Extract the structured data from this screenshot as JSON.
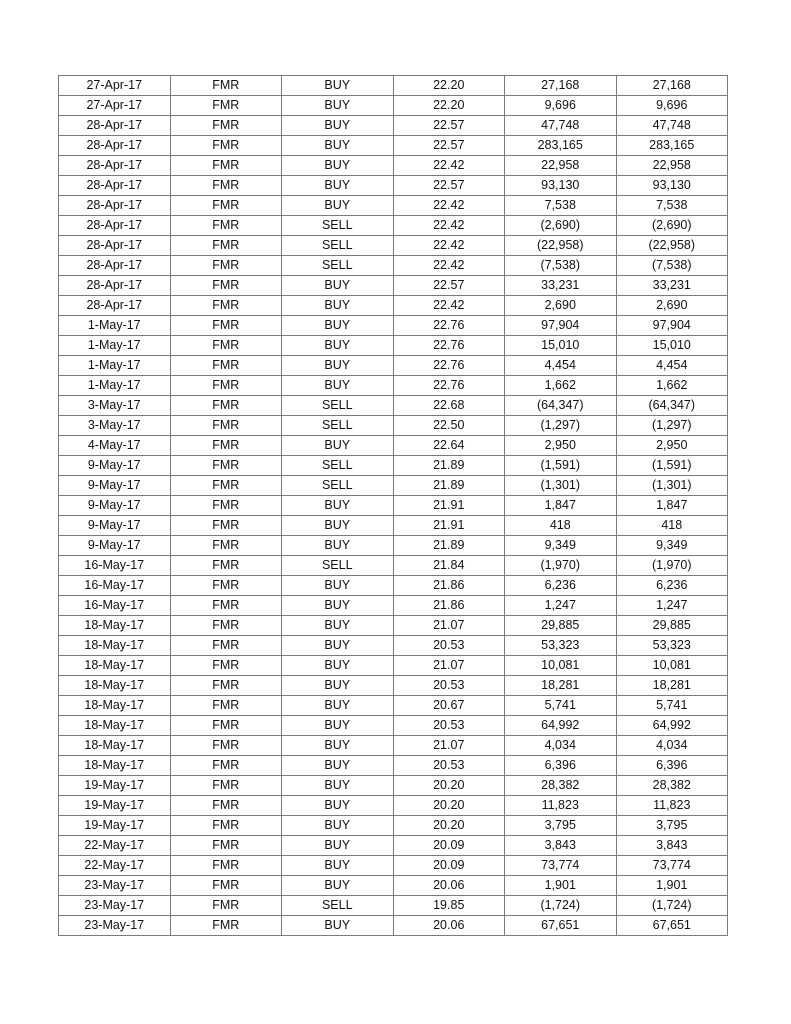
{
  "table": {
    "rows": [
      [
        "27-Apr-17",
        "FMR",
        "BUY",
        "22.20",
        "27,168",
        "27,168"
      ],
      [
        "27-Apr-17",
        "FMR",
        "BUY",
        "22.20",
        "9,696",
        "9,696"
      ],
      [
        "28-Apr-17",
        "FMR",
        "BUY",
        "22.57",
        "47,748",
        "47,748"
      ],
      [
        "28-Apr-17",
        "FMR",
        "BUY",
        "22.57",
        "283,165",
        "283,165"
      ],
      [
        "28-Apr-17",
        "FMR",
        "BUY",
        "22.42",
        "22,958",
        "22,958"
      ],
      [
        "28-Apr-17",
        "FMR",
        "BUY",
        "22.57",
        "93,130",
        "93,130"
      ],
      [
        "28-Apr-17",
        "FMR",
        "BUY",
        "22.42",
        "7,538",
        "7,538"
      ],
      [
        "28-Apr-17",
        "FMR",
        "SELL",
        "22.42",
        "(2,690)",
        "(2,690)"
      ],
      [
        "28-Apr-17",
        "FMR",
        "SELL",
        "22.42",
        "(22,958)",
        "(22,958)"
      ],
      [
        "28-Apr-17",
        "FMR",
        "SELL",
        "22.42",
        "(7,538)",
        "(7,538)"
      ],
      [
        "28-Apr-17",
        "FMR",
        "BUY",
        "22.57",
        "33,231",
        "33,231"
      ],
      [
        "28-Apr-17",
        "FMR",
        "BUY",
        "22.42",
        "2,690",
        "2,690"
      ],
      [
        "1-May-17",
        "FMR",
        "BUY",
        "22.76",
        "97,904",
        "97,904"
      ],
      [
        "1-May-17",
        "FMR",
        "BUY",
        "22.76",
        "15,010",
        "15,010"
      ],
      [
        "1-May-17",
        "FMR",
        "BUY",
        "22.76",
        "4,454",
        "4,454"
      ],
      [
        "1-May-17",
        "FMR",
        "BUY",
        "22.76",
        "1,662",
        "1,662"
      ],
      [
        "3-May-17",
        "FMR",
        "SELL",
        "22.68",
        "(64,347)",
        "(64,347)"
      ],
      [
        "3-May-17",
        "FMR",
        "SELL",
        "22.50",
        "(1,297)",
        "(1,297)"
      ],
      [
        "4-May-17",
        "FMR",
        "BUY",
        "22.64",
        "2,950",
        "2,950"
      ],
      [
        "9-May-17",
        "FMR",
        "SELL",
        "21.89",
        "(1,591)",
        "(1,591)"
      ],
      [
        "9-May-17",
        "FMR",
        "SELL",
        "21.89",
        "(1,301)",
        "(1,301)"
      ],
      [
        "9-May-17",
        "FMR",
        "BUY",
        "21.91",
        "1,847",
        "1,847"
      ],
      [
        "9-May-17",
        "FMR",
        "BUY",
        "21.91",
        "418",
        "418"
      ],
      [
        "9-May-17",
        "FMR",
        "BUY",
        "21.89",
        "9,349",
        "9,349"
      ],
      [
        "16-May-17",
        "FMR",
        "SELL",
        "21.84",
        "(1,970)",
        "(1,970)"
      ],
      [
        "16-May-17",
        "FMR",
        "BUY",
        "21.86",
        "6,236",
        "6,236"
      ],
      [
        "16-May-17",
        "FMR",
        "BUY",
        "21.86",
        "1,247",
        "1,247"
      ],
      [
        "18-May-17",
        "FMR",
        "BUY",
        "21.07",
        "29,885",
        "29,885"
      ],
      [
        "18-May-17",
        "FMR",
        "BUY",
        "20.53",
        "53,323",
        "53,323"
      ],
      [
        "18-May-17",
        "FMR",
        "BUY",
        "21.07",
        "10,081",
        "10,081"
      ],
      [
        "18-May-17",
        "FMR",
        "BUY",
        "20.53",
        "18,281",
        "18,281"
      ],
      [
        "18-May-17",
        "FMR",
        "BUY",
        "20.67",
        "5,741",
        "5,741"
      ],
      [
        "18-May-17",
        "FMR",
        "BUY",
        "20.53",
        "64,992",
        "64,992"
      ],
      [
        "18-May-17",
        "FMR",
        "BUY",
        "21.07",
        "4,034",
        "4,034"
      ],
      [
        "18-May-17",
        "FMR",
        "BUY",
        "20.53",
        "6,396",
        "6,396"
      ],
      [
        "19-May-17",
        "FMR",
        "BUY",
        "20.20",
        "28,382",
        "28,382"
      ],
      [
        "19-May-17",
        "FMR",
        "BUY",
        "20.20",
        "11,823",
        "11,823"
      ],
      [
        "19-May-17",
        "FMR",
        "BUY",
        "20.20",
        "3,795",
        "3,795"
      ],
      [
        "22-May-17",
        "FMR",
        "BUY",
        "20.09",
        "3,843",
        "3,843"
      ],
      [
        "22-May-17",
        "FMR",
        "BUY",
        "20.09",
        "73,774",
        "73,774"
      ],
      [
        "23-May-17",
        "FMR",
        "BUY",
        "20.06",
        "1,901",
        "1,901"
      ],
      [
        "23-May-17",
        "FMR",
        "SELL",
        "19.85",
        "(1,724)",
        "(1,724)"
      ],
      [
        "23-May-17",
        "FMR",
        "BUY",
        "20.06",
        "67,651",
        "67,651"
      ]
    ]
  }
}
